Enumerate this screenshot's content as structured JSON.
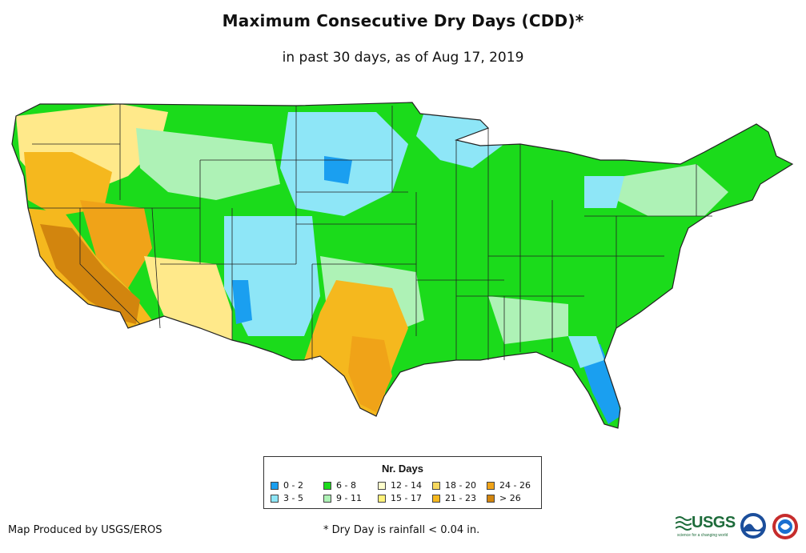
{
  "title": "Maximum Consecutive Dry Days (CDD)*",
  "subtitle": "in past 30 days, as of Aug 17, 2019",
  "legend": {
    "title": "Nr. Days",
    "items": [
      {
        "label": "0 - 2",
        "color": "#1a9ff0"
      },
      {
        "label": "6 - 8",
        "color": "#1bdb1b"
      },
      {
        "label": "12 - 14",
        "color": "#ffffcc"
      },
      {
        "label": "18 - 20",
        "color": "#f7d85e"
      },
      {
        "label": "24 - 26",
        "color": "#f0a318"
      },
      {
        "label": "3 - 5",
        "color": "#8ee6f7"
      },
      {
        "label": "9 - 11",
        "color": "#aef2b6"
      },
      {
        "label": "15 - 17",
        "color": "#fff27a"
      },
      {
        "label": "21 - 23",
        "color": "#f5b81e"
      },
      {
        "label": "> 26",
        "color": "#d2850e"
      }
    ]
  },
  "credit": "Map Produced by USGS/EROS",
  "footnote": "* Dry Day is rainfall < 0.04 in.",
  "logos": {
    "usgs": "USGS",
    "usgs_tagline": "science for a changing world"
  },
  "colors": {
    "state_border": "#222222",
    "background": "#ffffff"
  }
}
